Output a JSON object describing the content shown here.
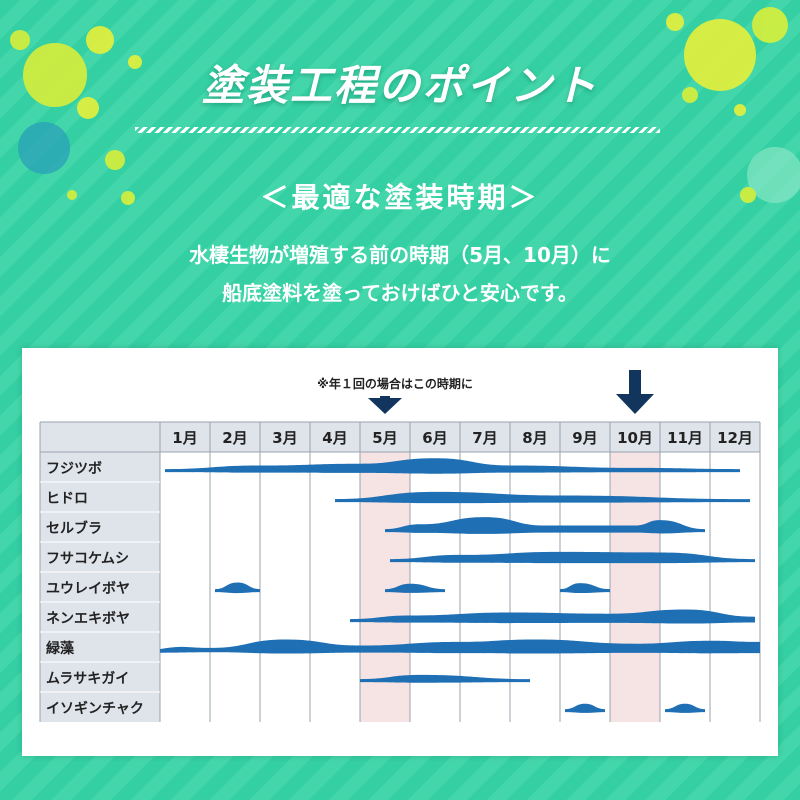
{
  "header": {
    "title": "塗装工程のポイント",
    "subtitle": "＜最適な塗装時期＞",
    "desc_line1": "水棲生物が増殖する前の時期（5月、10月）に",
    "desc_line2": "船底塗料を塗っておけばひと安心です。"
  },
  "colors": {
    "background": "#34cfa2",
    "band": "#1f6fb4",
    "highlight": "#f6e3e3",
    "arrow": "#12355e",
    "header_cell": "#dfe3ea"
  },
  "chart_data": {
    "type": "area",
    "title": "",
    "annotation": "※年１回の場合はこの時期に",
    "categories": [
      "1月",
      "2月",
      "3月",
      "4月",
      "5月",
      "6月",
      "7月",
      "8月",
      "9月",
      "10月",
      "11月",
      "12月"
    ],
    "highlight_months": [
      "5月",
      "10月"
    ],
    "arrows": [
      "5月",
      "10月"
    ],
    "grid": true,
    "series": [
      {
        "name": "フジツボ",
        "segments": [
          {
            "start": 1.1,
            "end": 12.6,
            "peaks": [
              [
                1.1,
                0
              ],
              [
                3.0,
                0.3
              ],
              [
                5.0,
                0.45
              ],
              [
                6.5,
                0.9
              ],
              [
                8.0,
                0.3
              ],
              [
                10.5,
                0.1
              ],
              [
                12.6,
                0
              ]
            ]
          }
        ]
      },
      {
        "name": "ヒドロ",
        "segments": [
          {
            "start": 4.5,
            "end": 12.8,
            "peaks": [
              [
                4.5,
                0
              ],
              [
                6.5,
                0.6
              ],
              [
                9.0,
                0.3
              ],
              [
                12.8,
                0
              ]
            ]
          }
        ]
      },
      {
        "name": "セルブラ",
        "segments": [
          {
            "start": 5.5,
            "end": 11.9,
            "peaks": [
              [
                5.5,
                0
              ],
              [
                6.2,
                0.4
              ],
              [
                7.5,
                1.0
              ],
              [
                8.7,
                0.3
              ],
              [
                10.5,
                0.3
              ],
              [
                11.0,
                0.75
              ],
              [
                11.9,
                0
              ]
            ]
          }
        ]
      },
      {
        "name": "フサコケムシ",
        "segments": [
          {
            "start": 5.6,
            "end": 12.9,
            "peaks": [
              [
                5.6,
                0
              ],
              [
                7.0,
                0.35
              ],
              [
                9.0,
                0.6
              ],
              [
                11.0,
                0.55
              ],
              [
                12.9,
                0
              ]
            ]
          }
        ]
      },
      {
        "name": "ユウレイボヤ",
        "segments": [
          {
            "start": 2.1,
            "end": 3.0,
            "peaks": [
              [
                2.1,
                0
              ],
              [
                2.55,
                0.55
              ],
              [
                3.0,
                0
              ]
            ]
          },
          {
            "start": 5.5,
            "end": 6.7,
            "peaks": [
              [
                5.5,
                0
              ],
              [
                6.0,
                0.45
              ],
              [
                6.7,
                0
              ]
            ]
          },
          {
            "start": 9.0,
            "end": 10.0,
            "peaks": [
              [
                9.0,
                0
              ],
              [
                9.4,
                0.5
              ],
              [
                10.0,
                0
              ]
            ]
          }
        ]
      },
      {
        "name": "ネンエキボヤ",
        "segments": [
          {
            "start": 4.8,
            "end": 12.9,
            "peaks": [
              [
                4.8,
                0
              ],
              [
                6.0,
                0.3
              ],
              [
                8.0,
                0.55
              ],
              [
                10.0,
                0.45
              ],
              [
                11.5,
                0.8
              ],
              [
                12.9,
                0.2
              ]
            ]
          }
        ]
      },
      {
        "name": "緑藻",
        "segments": [
          {
            "start": 1.0,
            "end": 13.0,
            "peaks": [
              [
                1.0,
                0.35
              ],
              [
                2.0,
                0.1
              ],
              [
                3.5,
                0.8
              ],
              [
                5.0,
                0.3
              ],
              [
                7.0,
                0.6
              ],
              [
                8.5,
                0.8
              ],
              [
                10.5,
                0.45
              ],
              [
                12.0,
                0.7
              ],
              [
                13.0,
                0.6
              ]
            ]
          }
        ]
      },
      {
        "name": "ムラサキガイ",
        "segments": [
          {
            "start": 5.0,
            "end": 8.4,
            "peaks": [
              [
                5.0,
                0
              ],
              [
                6.2,
                0.35
              ],
              [
                8.4,
                0
              ]
            ]
          }
        ]
      },
      {
        "name": "イソギンチャク",
        "segments": [
          {
            "start": 9.1,
            "end": 9.9,
            "peaks": [
              [
                9.1,
                0
              ],
              [
                9.5,
                0.45
              ],
              [
                9.9,
                0
              ]
            ]
          },
          {
            "start": 11.1,
            "end": 11.9,
            "peaks": [
              [
                11.1,
                0
              ],
              [
                11.5,
                0.45
              ],
              [
                11.9,
                0
              ]
            ]
          }
        ]
      }
    ]
  }
}
